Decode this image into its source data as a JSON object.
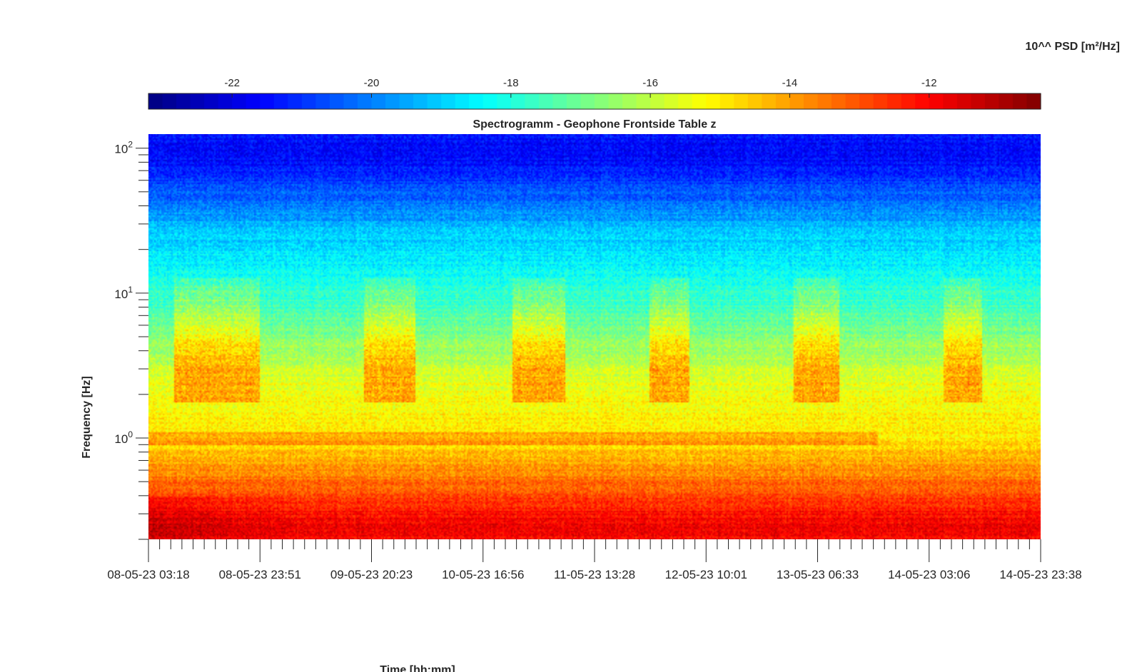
{
  "chart_data": {
    "type": "heatmap",
    "title": "Spectrogramm - Geophone Frontside Table z",
    "xlabel": "Time [hh:mm]",
    "ylabel": "Frequency [Hz]",
    "colorbar_label": "10^^ PSD [m²/Hz]",
    "colorbar_ticks": [
      "-22",
      "-20",
      "-18",
      "-16",
      "-14",
      "-12"
    ],
    "colorbar_tick_values": [
      -22,
      -20,
      -18,
      -16,
      -14,
      -12
    ],
    "colorbar_range": [
      -23.2,
      -10.4
    ],
    "colormap": "jet",
    "x_ticks": [
      "08-05-23 03:18",
      "08-05-23 23:51",
      "09-05-23 20:23",
      "10-05-23 16:56",
      "11-05-23 13:28",
      "12-05-23 10:01",
      "13-05-23 06:33",
      "14-05-23 03:06",
      "14-05-23 23:38"
    ],
    "y_scale": "log",
    "y_ticks": [
      {
        "base": "10",
        "exp": "0",
        "value": 1
      },
      {
        "base": "10",
        "exp": "1",
        "value": 10
      },
      {
        "base": "10",
        "exp": "2",
        "value": 100
      }
    ],
    "y_range": [
      0.2,
      125
    ],
    "x_range_days": [
      0,
      6.85
    ],
    "active_periods_day_fraction": [
      [
        0.2,
        0.85
      ],
      [
        1.65,
        2.05
      ],
      [
        2.8,
        3.2
      ],
      [
        3.85,
        4.15
      ],
      [
        4.95,
        5.3
      ],
      [
        6.1,
        6.4
      ]
    ],
    "bands": [
      {
        "freq_range": [
          50,
          125
        ],
        "log10_psd": -21.5
      },
      {
        "freq_range": [
          12,
          50
        ],
        "log10_psd": -19.0
      },
      {
        "freq_range": [
          5,
          12
        ],
        "log10_psd": -17.5
      },
      {
        "freq_range": [
          1.2,
          5
        ],
        "log10_psd": -15.5
      },
      {
        "freq_range": [
          0.7,
          1.2
        ],
        "log10_psd": -14.8
      },
      {
        "freq_range": [
          0.2,
          0.4
        ],
        "log10_psd": -12.0
      }
    ]
  }
}
